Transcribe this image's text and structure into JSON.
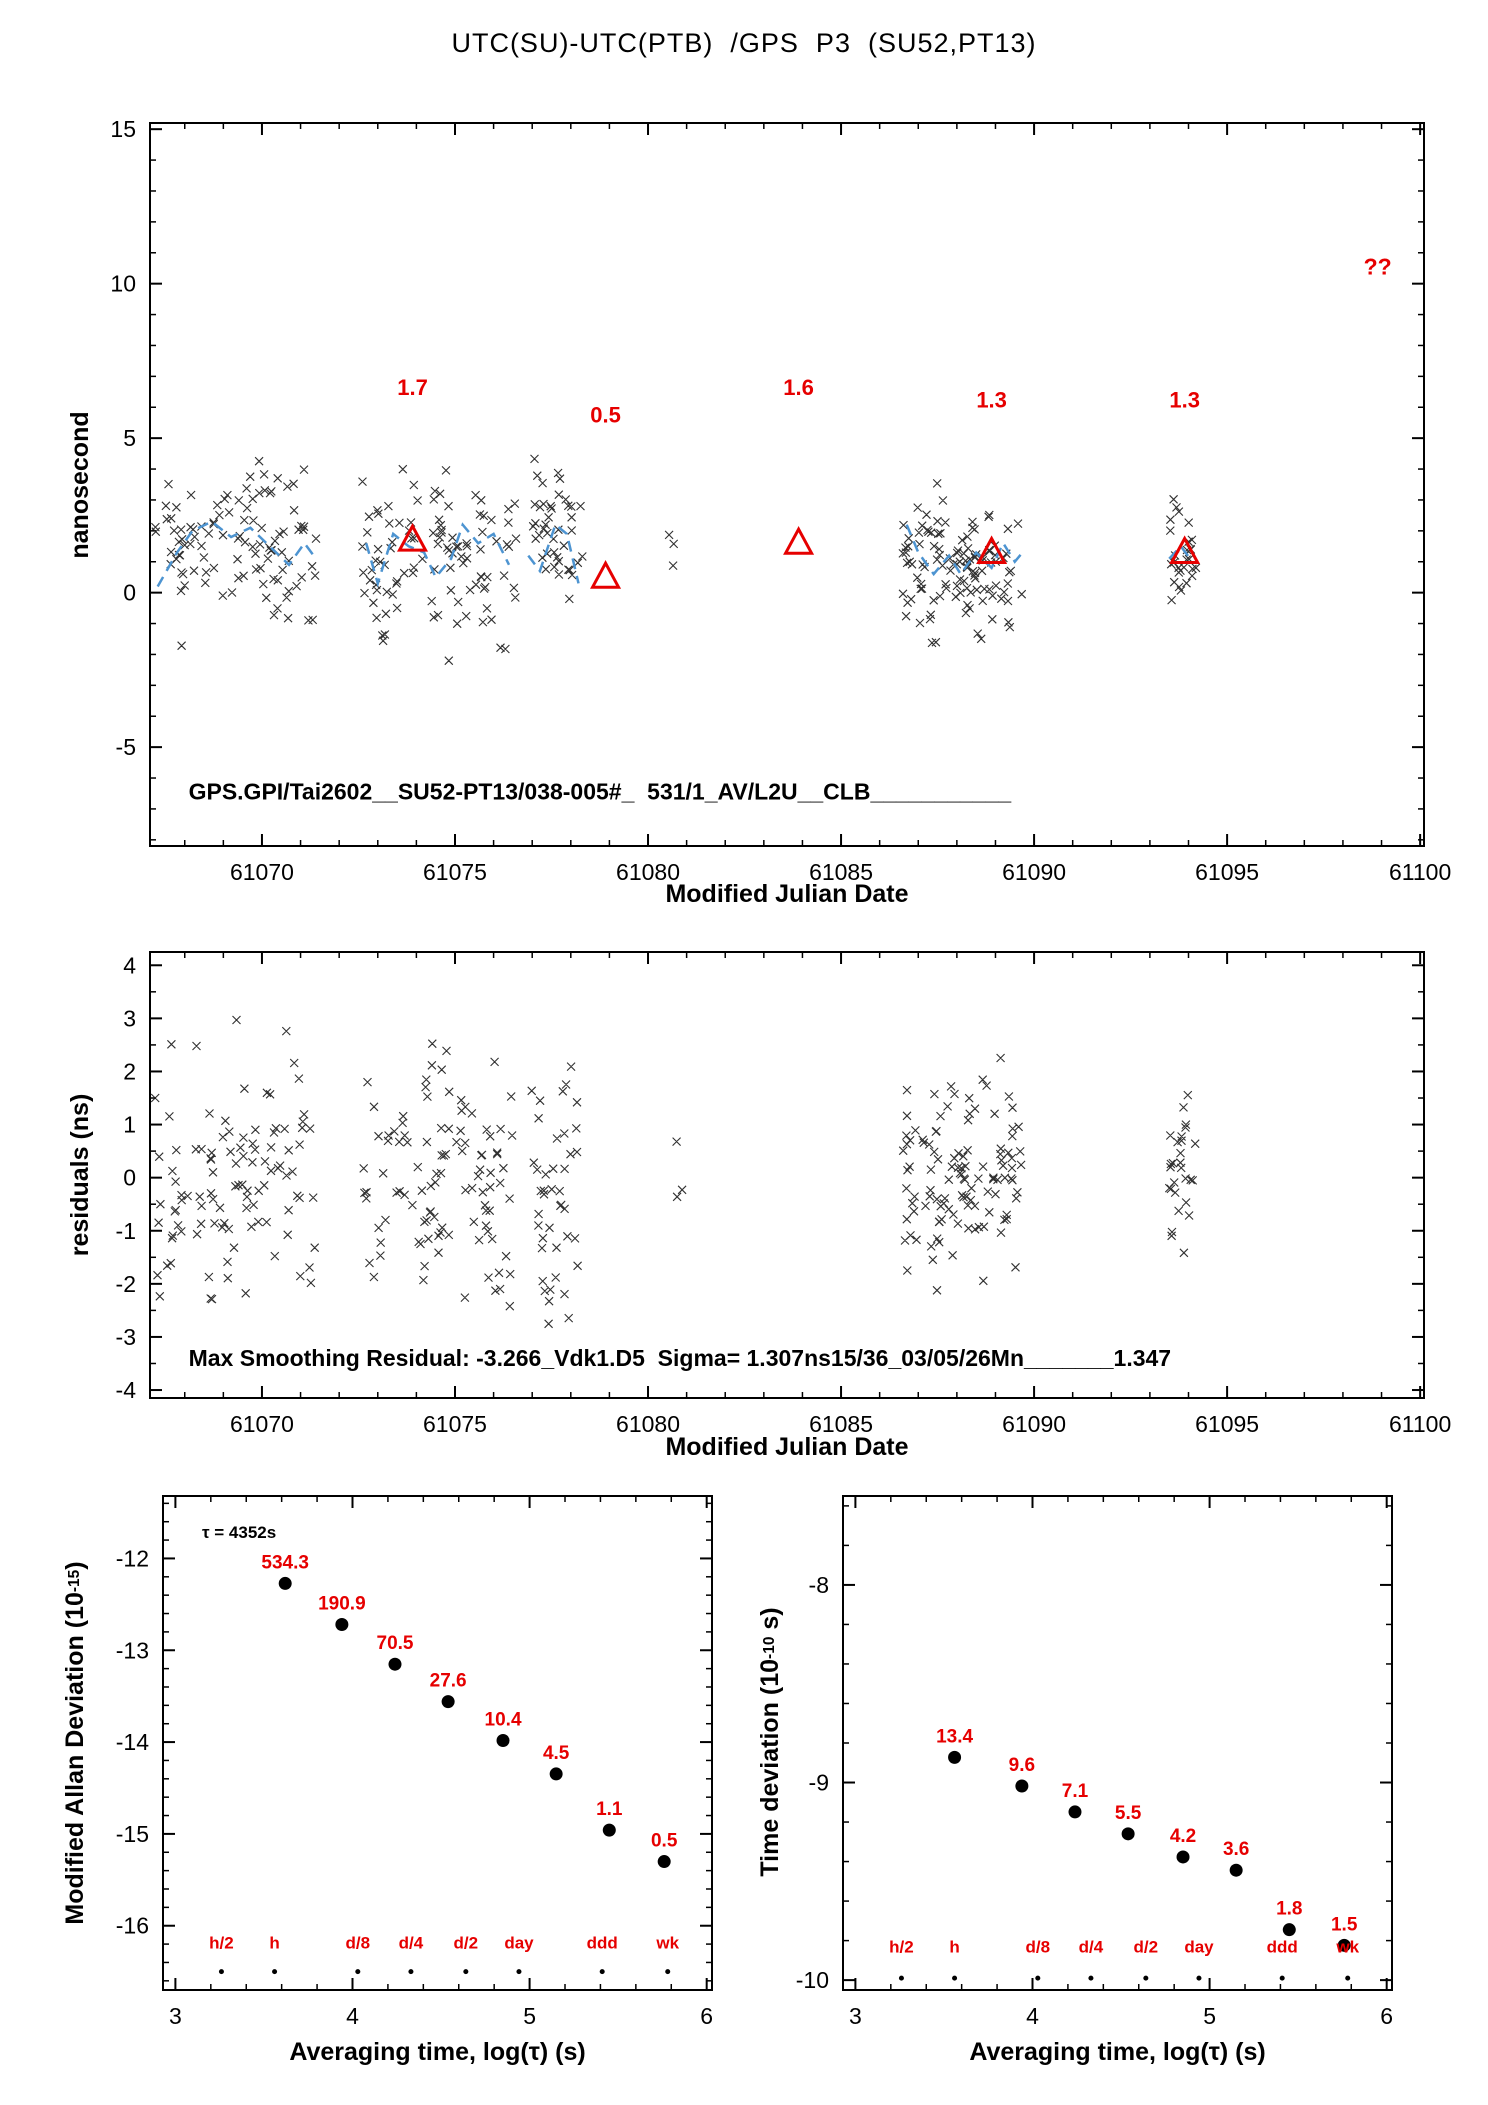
{
  "title": "UTC(SU)-UTC(PTB)  /GPS  P3  (SU52,PT13)",
  "colors": {
    "marker": "#1f1f1f",
    "smooth": "#4d94d1",
    "red": "#e60000",
    "black": "#000000"
  },
  "axis_labels": {
    "mjd": "Modified Julian Date",
    "nanosecond": "nanosecond",
    "residuals": "residuals (ns)",
    "mdev_prefix": "Modified Allan Deviation (10",
    "mdev_sup": "-15",
    "mdev_suffix": ")",
    "tdev_prefix": "Time deviation (10",
    "tdev_sup": "-10",
    "tdev_suffix": " s)",
    "avg_time": "Averaging time, log(τ) (s)"
  },
  "chart_data": [
    {
      "id": "phase",
      "type": "scatter",
      "title": "UTC(SU)-UTC(PTB)  /GPS  P3  (SU52,PT13)",
      "xlabel": "Modified Julian Date",
      "ylabel": "nanosecond",
      "xlim": [
        61067.1,
        61100.1
      ],
      "ylim": [
        -8.2,
        15.2
      ],
      "xticks": [
        61070,
        61075,
        61080,
        61085,
        61090,
        61095,
        61100
      ],
      "yticks": [
        -5,
        0,
        5,
        10,
        15
      ],
      "x_minor_step": 1,
      "y_minor_step": 1,
      "clusters": [
        {
          "x0": 61067.2,
          "x1": 61071.4,
          "count": 105,
          "center": 1.4,
          "sigma": 1.8
        },
        {
          "x0": 61072.6,
          "x1": 61076.6,
          "count": 105,
          "center": 1.0,
          "sigma": 1.9
        },
        {
          "x0": 61076.9,
          "x1": 61078.3,
          "count": 42,
          "center": 1.7,
          "sigma": 1.6
        },
        {
          "x0": 61080.5,
          "x1": 61080.9,
          "count": 3,
          "center": 1.3,
          "sigma": 0.7
        },
        {
          "x0": 61086.6,
          "x1": 61089.7,
          "count": 115,
          "center": 0.9,
          "sigma": 1.6
        },
        {
          "x0": 61093.5,
          "x1": 61094.2,
          "count": 28,
          "center": 1.2,
          "sigma": 1.3
        }
      ],
      "smooth_segments": [
        [
          [
            61067.3,
            0.2
          ],
          [
            61067.8,
            1.3
          ],
          [
            61068.2,
            2.0
          ],
          [
            61068.7,
            2.3
          ],
          [
            61069.2,
            1.8
          ],
          [
            61069.7,
            2.1
          ],
          [
            61070.2,
            1.5
          ],
          [
            61070.7,
            0.9
          ],
          [
            61071.1,
            1.6
          ],
          [
            61071.4,
            1.1
          ]
        ],
        [
          [
            61072.7,
            1.6
          ],
          [
            61073.0,
            0.3
          ],
          [
            61073.4,
            1.9
          ],
          [
            61073.8,
            1.5
          ],
          [
            61074.2,
            1.3
          ],
          [
            61074.5,
            0.5
          ],
          [
            61074.9,
            1.1
          ],
          [
            61075.2,
            2.2
          ],
          [
            61075.6,
            1.6
          ],
          [
            61076.0,
            1.9
          ],
          [
            61076.4,
            0.9
          ]
        ],
        [
          [
            61076.9,
            1.2
          ],
          [
            61077.2,
            0.7
          ],
          [
            61077.6,
            2.2
          ],
          [
            61077.9,
            1.9
          ],
          [
            61078.2,
            0.3
          ]
        ],
        [
          [
            61086.7,
            2.2
          ],
          [
            61087.0,
            1.3
          ],
          [
            61087.4,
            0.6
          ],
          [
            61087.8,
            1.2
          ],
          [
            61088.1,
            0.6
          ],
          [
            61088.5,
            1.3
          ],
          [
            61088.9,
            0.8
          ],
          [
            61089.2,
            1.6
          ],
          [
            61089.5,
            1.0
          ],
          [
            61089.7,
            1.3
          ]
        ],
        [
          [
            61093.5,
            1.1
          ],
          [
            61093.8,
            1.5
          ],
          [
            61094.1,
            1.0
          ]
        ]
      ],
      "triangles": [
        {
          "x": 61073.9,
          "y": 1.7,
          "label": "1.7",
          "label_y": 6.4
        },
        {
          "x": 61078.9,
          "y": 0.5,
          "label": "0.5",
          "label_y": 5.5
        },
        {
          "x": 61083.9,
          "y": 1.6,
          "label": "1.6",
          "label_y": 6.4
        },
        {
          "x": 61088.9,
          "y": 1.3,
          "label": "1.3",
          "label_y": 6.0
        },
        {
          "x": 61093.9,
          "y": 1.3,
          "label": "1.3",
          "label_y": 6.0
        }
      ],
      "missing_label": {
        "x": 61098.9,
        "y": 10.3,
        "text": "??"
      },
      "annotation": {
        "text": "GPS.GPI/Tai2602__SU52-PT13/038-005#_  531/1_AV/L2U__CLB___________",
        "x": 61068.1,
        "y": -6.7
      }
    },
    {
      "id": "residuals",
      "type": "scatter",
      "xlabel": "Modified Julian Date",
      "ylabel": "residuals (ns)",
      "xlim": [
        61067.1,
        61100.1
      ],
      "ylim": [
        -4.15,
        4.25
      ],
      "xticks": [
        61070,
        61075,
        61080,
        61085,
        61090,
        61095,
        61100
      ],
      "yticks": [
        -4,
        -3,
        -2,
        -1,
        0,
        1,
        2,
        3,
        4
      ],
      "x_minor_step": 1,
      "y_minor_step": 0.5,
      "clusters": [
        {
          "x0": 61067.2,
          "x1": 61071.4,
          "count": 105,
          "center": 0.0,
          "sigma": 1.6
        },
        {
          "x0": 61072.6,
          "x1": 61076.6,
          "count": 105,
          "center": 0.0,
          "sigma": 1.7
        },
        {
          "x0": 61076.9,
          "x1": 61078.3,
          "count": 42,
          "center": -0.3,
          "sigma": 1.5
        },
        {
          "x0": 61080.5,
          "x1": 61080.9,
          "count": 3,
          "center": 0.3,
          "sigma": 0.7
        },
        {
          "x0": 61086.6,
          "x1": 61089.7,
          "count": 115,
          "center": 0.1,
          "sigma": 1.3
        },
        {
          "x0": 61093.5,
          "x1": 61094.2,
          "count": 28,
          "center": 0.2,
          "sigma": 1.2
        }
      ],
      "annotation": {
        "text": "Max Smoothing Residual: -3.266_Vdk1.D5  Sigma= 1.307ns15/36_03/05/26Mn_______1.347",
        "x": 61068.1,
        "y": -3.55
      }
    },
    {
      "id": "mdev",
      "type": "scatter",
      "xlabel": "Averaging time, log(τ) (s)",
      "ylabel": "Modified Allan Deviation (10^-15)",
      "xlim": [
        2.93,
        6.03
      ],
      "ylim": [
        -16.7,
        -11.32
      ],
      "xticks": [
        3,
        4,
        5,
        6
      ],
      "yticks": [
        -12,
        -13,
        -14,
        -15,
        -16
      ],
      "x_minor_step": 0.2,
      "y_minor_step": 0.2,
      "log_offset": -15,
      "points": [
        {
          "x": 3.62,
          "value": 534.3
        },
        {
          "x": 3.94,
          "value": 190.9
        },
        {
          "x": 4.24,
          "value": 70.5
        },
        {
          "x": 4.54,
          "value": 27.6
        },
        {
          "x": 4.85,
          "value": 10.4
        },
        {
          "x": 5.15,
          "value": 4.5
        },
        {
          "x": 5.45,
          "value": 1.1
        },
        {
          "x": 5.76,
          "value": 0.5
        }
      ],
      "tau_ticks": [
        {
          "x": 3.26,
          "label": "h/2"
        },
        {
          "x": 3.56,
          "label": "h"
        },
        {
          "x": 4.03,
          "label": "d/8"
        },
        {
          "x": 4.33,
          "label": "d/4"
        },
        {
          "x": 4.64,
          "label": "d/2"
        },
        {
          "x": 4.94,
          "label": "day"
        },
        {
          "x": 5.41,
          "label": "ddd"
        },
        {
          "x": 5.78,
          "label": "wk"
        }
      ],
      "tau_label_y": -16.25,
      "tau_dot_y": -16.5,
      "annotation": {
        "text": "τ = 4352s",
        "x": 3.15,
        "y": -11.78
      }
    },
    {
      "id": "tdev",
      "type": "scatter",
      "xlabel": "Averaging time, log(τ) (s)",
      "ylabel": "Time deviation (10^-10 s)",
      "xlim": [
        2.93,
        6.03
      ],
      "ylim": [
        -10.05,
        -7.55
      ],
      "xticks": [
        3,
        4,
        5,
        6
      ],
      "yticks": [
        -8,
        -9,
        -10
      ],
      "x_minor_step": 0.2,
      "y_minor_step": 0.2,
      "log_offset": -10,
      "points": [
        {
          "x": 3.56,
          "value": 13.4
        },
        {
          "x": 3.94,
          "value": 9.6
        },
        {
          "x": 4.24,
          "value": 7.1
        },
        {
          "x": 4.54,
          "value": 5.5
        },
        {
          "x": 4.85,
          "value": 4.2
        },
        {
          "x": 5.15,
          "value": 3.6
        },
        {
          "x": 5.45,
          "value": 1.8
        },
        {
          "x": 5.76,
          "value": 1.5
        }
      ],
      "tau_ticks": [
        {
          "x": 3.26,
          "label": "h/2"
        },
        {
          "x": 3.56,
          "label": "h"
        },
        {
          "x": 4.03,
          "label": "d/8"
        },
        {
          "x": 4.33,
          "label": "d/4"
        },
        {
          "x": 4.64,
          "label": "d/2"
        },
        {
          "x": 4.94,
          "label": "day"
        },
        {
          "x": 5.41,
          "label": "ddd"
        },
        {
          "x": 5.78,
          "label": "wk"
        }
      ],
      "tau_label_y": -9.86,
      "tau_dot_y": -9.99
    }
  ]
}
